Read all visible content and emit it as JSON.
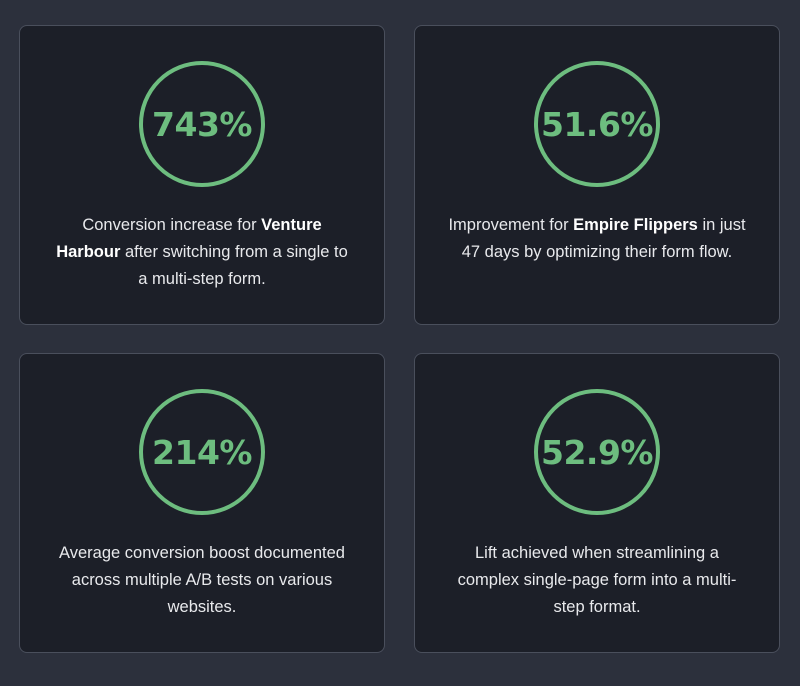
{
  "accent_color": "#6dbd7f",
  "background_color": "#2c303c",
  "card_color": "#1c1f28",
  "cards": [
    {
      "stat": "743%",
      "text_before": "Conversion increase for ",
      "highlight": "Venture Harbour",
      "text_after": " after switching from a single to a multi-step form."
    },
    {
      "stat": "51.6%",
      "text_before": "Improvement for ",
      "highlight": "Empire Flippers",
      "text_after": " in just 47 days by optimizing their form flow."
    },
    {
      "stat": "214%",
      "text_before": "Average conversion boost documented across multiple A/B tests on various websites.",
      "highlight": "",
      "text_after": ""
    },
    {
      "stat": "52.9%",
      "text_before": "Lift achieved when streamlining a complex single-page form into a multi-step format.",
      "highlight": "",
      "text_after": ""
    }
  ]
}
